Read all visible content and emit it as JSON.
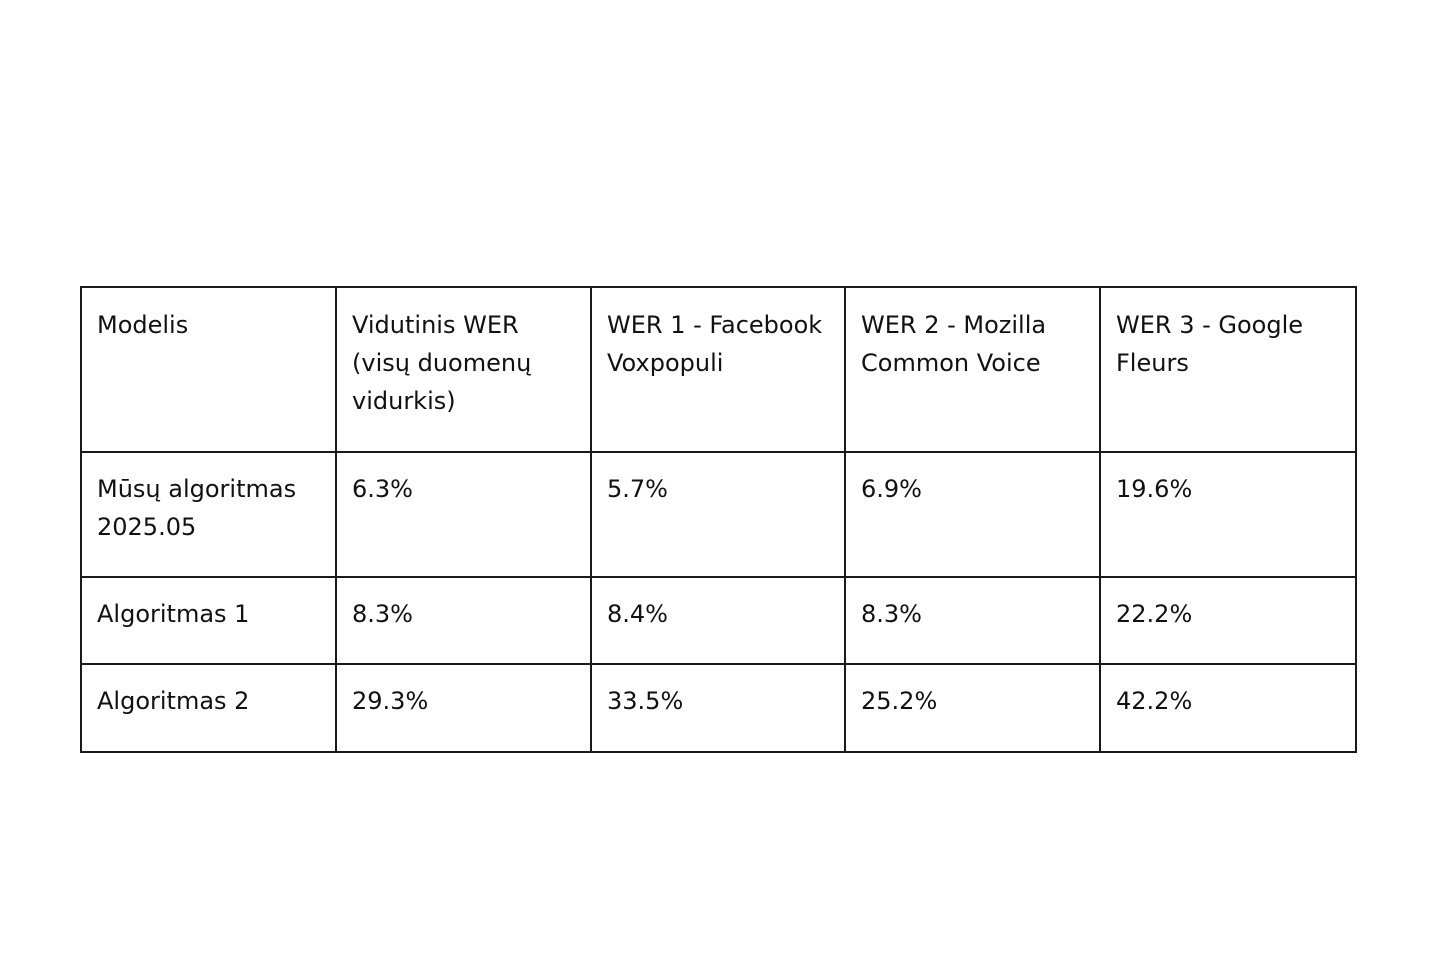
{
  "table": {
    "headers": [
      "Modelis",
      "Vidutinis WER (visų duomenų vidurkis)",
      "WER 1 - Facebook Voxpopuli",
      "WER 2 - Mozilla Common Voice",
      "WER 3 - Google Fleurs"
    ],
    "rows": [
      [
        "Mūsų algoritmas 2025.05",
        "6.3%",
        "5.7%",
        "6.9%",
        "19.6%"
      ],
      [
        "Algoritmas 1",
        "8.3%",
        "8.4%",
        "8.3%",
        "22.2%"
      ],
      [
        "Algoritmas 2",
        "29.3%",
        "33.5%",
        "25.2%",
        "42.2%"
      ]
    ]
  }
}
